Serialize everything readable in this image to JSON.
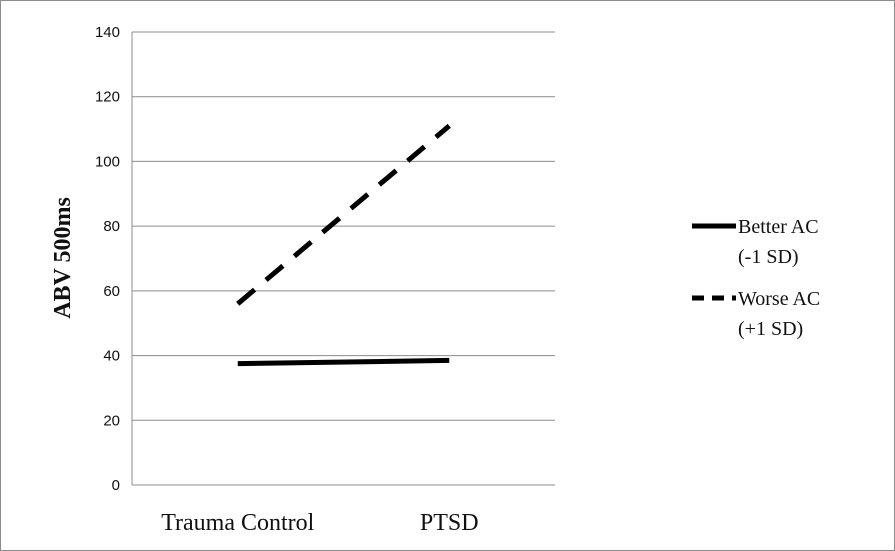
{
  "chart_data": {
    "type": "line",
    "categories": [
      "Trauma Control",
      "PTSD"
    ],
    "ylabel": "ABV 500ms",
    "ylim": [
      0,
      140
    ],
    "yticks": [
      0,
      20,
      40,
      60,
      80,
      100,
      120,
      140
    ],
    "grid": true,
    "legend_position": "right",
    "series": [
      {
        "name": "Better AC (-1 SD)",
        "legend_lines": [
          "Better AC",
          "(-1 SD)"
        ],
        "values": [
          37.5,
          38.5
        ],
        "dash": "solid",
        "color": "#000000"
      },
      {
        "name": "Worse AC (+1 SD)",
        "legend_lines": [
          "Worse AC",
          "(+1 SD)"
        ],
        "values": [
          56,
          111
        ],
        "dash": "dashed",
        "color": "#000000"
      }
    ]
  }
}
